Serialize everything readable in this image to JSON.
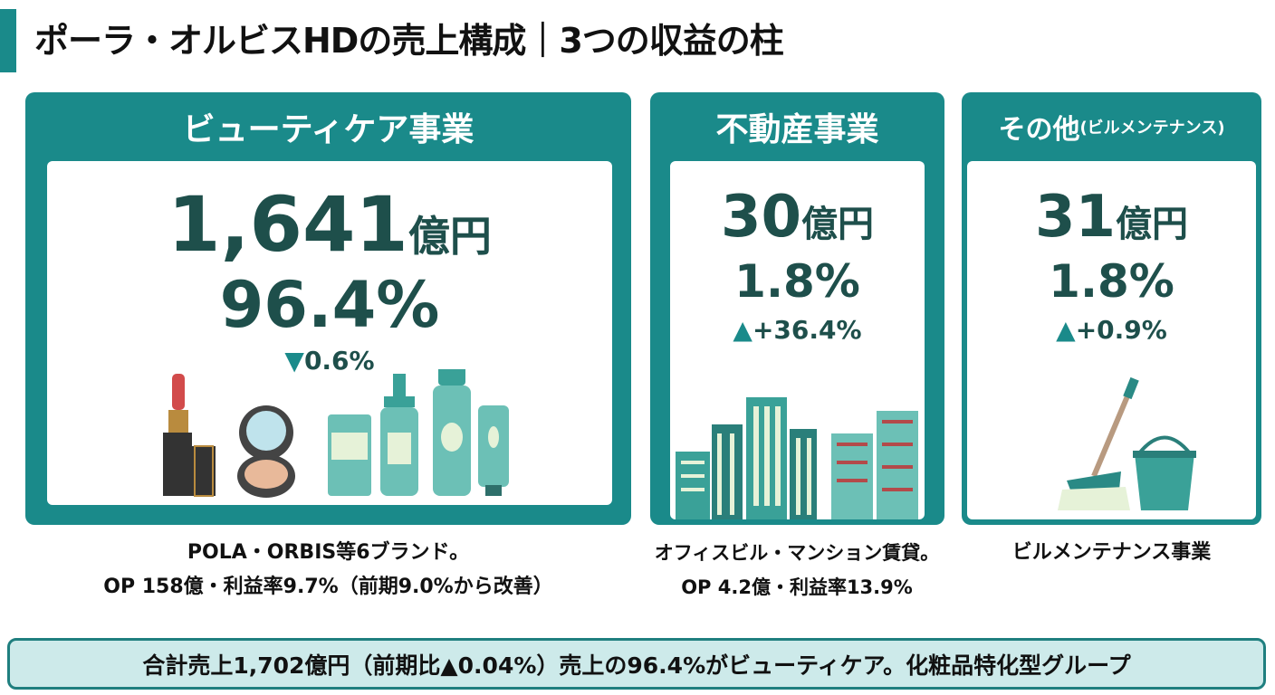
{
  "title": "ポーラ・オルビスHDの売上構成｜3つの収益の柱",
  "segments": [
    {
      "name": "ビューティケア事業",
      "sales": "1,641",
      "unit": "億円",
      "share": "96.4%",
      "change_dir": "down",
      "change_symbol": "▼",
      "change": "0.6%",
      "caption": [
        "POLA・ORBIS等6ブランド。",
        "OP 158億・利益率9.7%（前期9.0%から改善）"
      ],
      "icon": "cosmetics-icon"
    },
    {
      "name": "不動産事業",
      "sales": "30",
      "unit": "億円",
      "share": "1.8%",
      "change_dir": "up",
      "change_symbol": "▲",
      "change": "+36.4%",
      "caption": [
        "オフィスビル・マンション賃貸。",
        "OP 4.2億・利益率13.9%"
      ],
      "icon": "buildings-icon"
    },
    {
      "name": "その他",
      "name_sub": "(ビルメンテナンス)",
      "sales": "31",
      "unit": "億円",
      "share": "1.8%",
      "change_dir": "up",
      "change_symbol": "▲",
      "change": "+0.9%",
      "caption": [
        "ビルメンテナンス事業"
      ],
      "icon": "mop-bucket-icon"
    }
  ],
  "summary": "合計売上1,702億円（前期比▲0.04%）売上の96.4%がビューティケア。化粧品特化型グループ",
  "colors": {
    "teal": "#1a8a8a",
    "dark_text": "#1e4f4b",
    "summary_bg": "#cdeaea"
  }
}
